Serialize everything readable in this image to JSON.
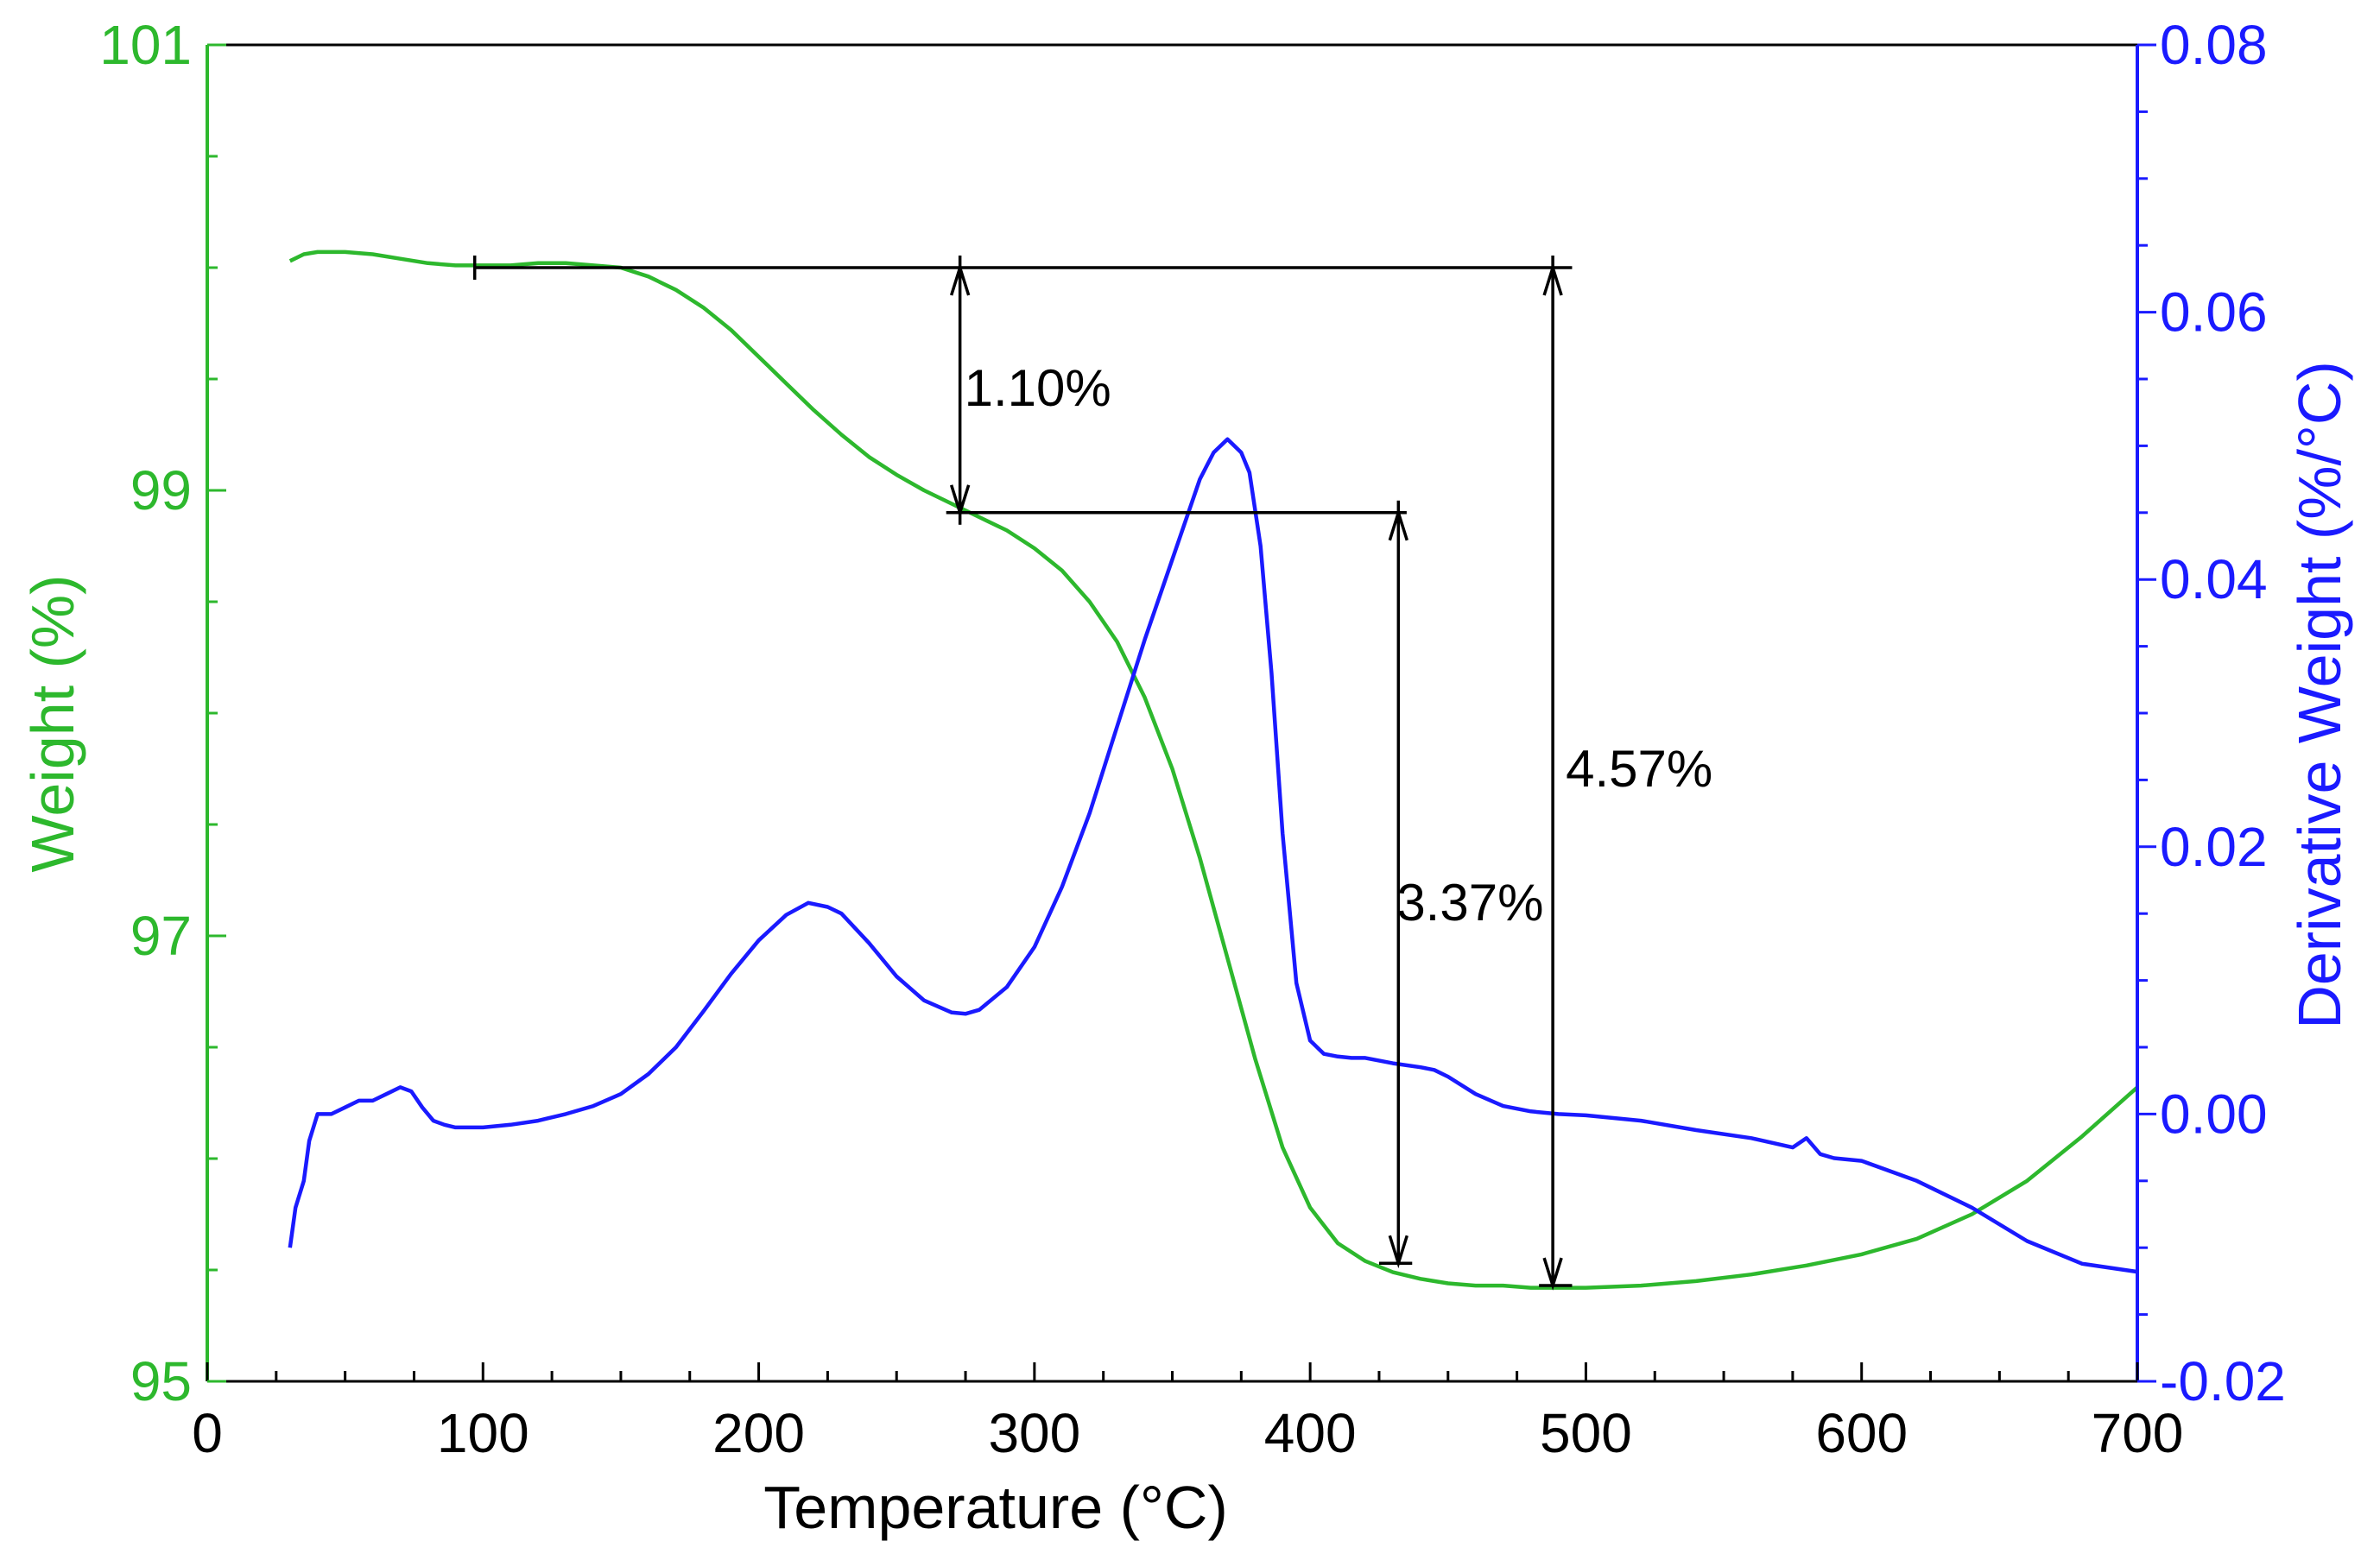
{
  "colors": {
    "weight": "#2db82d",
    "derivative": "#1a1aff",
    "annotation": "#000000",
    "frame": "#000000"
  },
  "chart_data": {
    "type": "line",
    "title": "",
    "xlabel": "Temperature (°C)",
    "ylabel_left": "Weight (%)",
    "ylabel_right": "Derivative Weight (%/°C)",
    "xlim": [
      0,
      700
    ],
    "ylim_left": [
      95,
      101
    ],
    "ylim_right": [
      -0.02,
      0.08
    ],
    "x_ticks": [
      0,
      100,
      200,
      300,
      400,
      500,
      600,
      700
    ],
    "x_tick_labels": [
      "0",
      "100",
      "200",
      "300",
      "400",
      "500",
      "600",
      "700"
    ],
    "y_left_ticks": [
      95,
      97,
      99,
      101
    ],
    "y_left_tick_labels": [
      "95",
      "97",
      "99",
      "101"
    ],
    "y_right_ticks": [
      -0.02,
      0.0,
      0.02,
      0.04,
      0.06,
      0.08
    ],
    "y_right_tick_labels": [
      "-0.02",
      "0.00",
      "0.02",
      "0.04",
      "0.06",
      "0.08"
    ],
    "series": [
      {
        "name": "Weight",
        "axis": "left",
        "x": [
          30,
          35,
          40,
          50,
          60,
          70,
          80,
          90,
          100,
          110,
          120,
          130,
          140,
          150,
          160,
          170,
          180,
          190,
          200,
          210,
          220,
          230,
          240,
          250,
          260,
          270,
          280,
          290,
          300,
          310,
          320,
          330,
          340,
          350,
          360,
          370,
          380,
          390,
          400,
          410,
          420,
          430,
          440,
          450,
          460,
          470,
          480,
          490,
          500,
          520,
          540,
          560,
          580,
          600,
          620,
          640,
          660,
          680,
          700
        ],
        "values": [
          100.03,
          100.06,
          100.07,
          100.07,
          100.06,
          100.04,
          100.02,
          100.01,
          100.01,
          100.01,
          100.02,
          100.02,
          100.01,
          100.0,
          99.96,
          99.9,
          99.82,
          99.72,
          99.6,
          99.48,
          99.36,
          99.25,
          99.15,
          99.07,
          99.0,
          98.94,
          98.88,
          98.82,
          98.74,
          98.64,
          98.5,
          98.32,
          98.07,
          97.75,
          97.35,
          96.9,
          96.45,
          96.05,
          95.78,
          95.62,
          95.54,
          95.49,
          95.46,
          95.44,
          95.43,
          95.43,
          95.42,
          95.42,
          95.42,
          95.43,
          95.45,
          95.48,
          95.52,
          95.57,
          95.64,
          95.75,
          95.9,
          96.1,
          96.32
        ]
      },
      {
        "name": "Derivative Weight",
        "axis": "right",
        "x": [
          30,
          32,
          35,
          37,
          40,
          45,
          50,
          55,
          60,
          65,
          70,
          74,
          78,
          82,
          86,
          90,
          100,
          110,
          120,
          130,
          140,
          150,
          160,
          170,
          180,
          190,
          200,
          210,
          218,
          225,
          230,
          240,
          250,
          260,
          270,
          275,
          280,
          290,
          300,
          310,
          320,
          330,
          340,
          350,
          360,
          365,
          370,
          375,
          378,
          382,
          386,
          390,
          395,
          400,
          405,
          410,
          415,
          420,
          430,
          440,
          445,
          450,
          460,
          470,
          480,
          490,
          500,
          520,
          540,
          560,
          575,
          580,
          585,
          590,
          600,
          620,
          640,
          660,
          680,
          700
        ],
        "values": [
          -0.01,
          -0.007,
          -0.005,
          -0.002,
          0.0,
          0.0,
          0.0005,
          0.001,
          0.001,
          0.0015,
          0.002,
          0.0017,
          0.0005,
          -0.0005,
          -0.0008,
          -0.001,
          -0.001,
          -0.0008,
          -0.0005,
          0.0,
          0.0006,
          0.0015,
          0.003,
          0.005,
          0.0077,
          0.0105,
          0.013,
          0.0149,
          0.0158,
          0.0155,
          0.015,
          0.0128,
          0.0103,
          0.0085,
          0.0076,
          0.0075,
          0.0078,
          0.0095,
          0.0125,
          0.017,
          0.0225,
          0.029,
          0.0355,
          0.0415,
          0.0475,
          0.0495,
          0.0505,
          0.0495,
          0.048,
          0.0425,
          0.033,
          0.021,
          0.0098,
          0.0055,
          0.0045,
          0.0043,
          0.0042,
          0.0042,
          0.0038,
          0.0035,
          0.0033,
          0.0028,
          0.0015,
          0.0006,
          0.0002,
          0.0,
          -0.0001,
          -0.0005,
          -0.0012,
          -0.0018,
          -0.0025,
          -0.0018,
          -0.003,
          -0.0033,
          -0.0035,
          -0.005,
          -0.007,
          -0.0095,
          -0.0112,
          -0.0118
        ]
      }
    ],
    "annotations": [
      {
        "label": "1.10%",
        "x": 273,
        "y_top": 100.0,
        "y_bottom": 98.9,
        "bracket_top_x": [
          97,
          273
        ],
        "bracket_bottom_x": [
          268,
          435
        ]
      },
      {
        "label": "3.37%",
        "x": 432,
        "y_top": 98.9,
        "y_bottom": 95.53,
        "bracket_bottom_x": [
          425,
          437
        ]
      },
      {
        "label": "4.57%",
        "x": 488,
        "y_top": 100.0,
        "y_bottom": 95.43,
        "bracket_top_x": [
          273,
          495
        ],
        "bracket_bottom_x": [
          483,
          495
        ]
      }
    ]
  }
}
